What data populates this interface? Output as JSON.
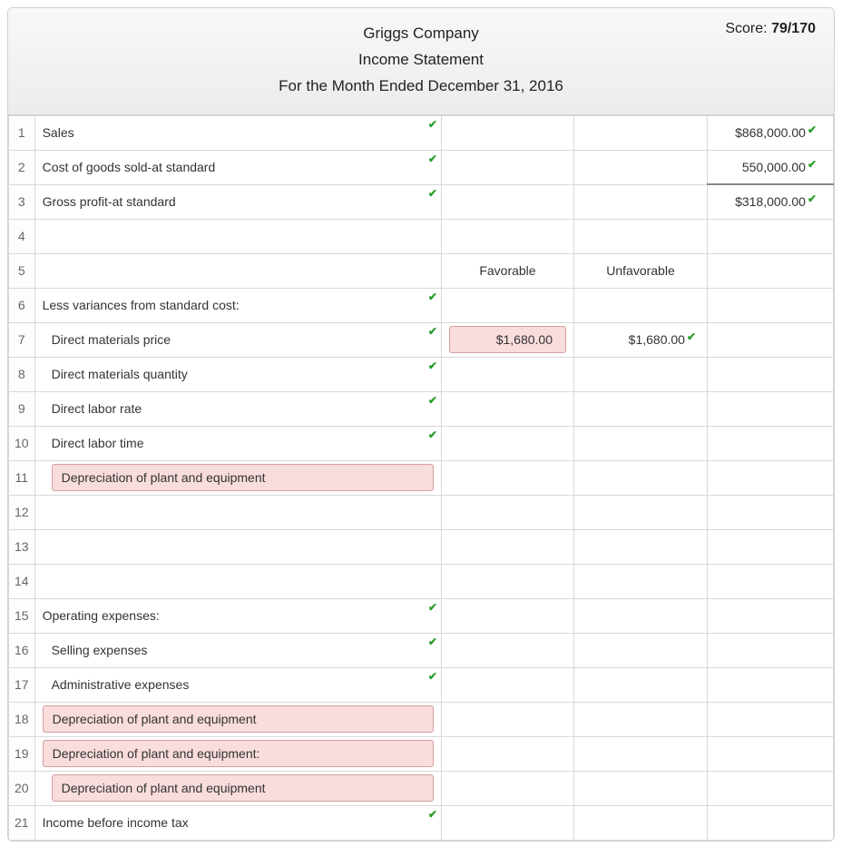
{
  "header": {
    "company": "Griggs Company",
    "statement": "Income Statement",
    "period": "For the Month Ended December 31, 2016",
    "score_label": "Score:",
    "score_value": "79/170"
  },
  "columns": {
    "favorable": "Favorable",
    "unfavorable": "Unfavorable"
  },
  "rows": [
    {
      "num": "1",
      "label": "Sales",
      "label_check": true,
      "amount": "$868,000.00",
      "amount_check": true
    },
    {
      "num": "2",
      "label": "Cost of goods sold-at standard",
      "label_check": true,
      "amount": "550,000.00",
      "amount_check": true
    },
    {
      "num": "3",
      "label": "Gross profit-at standard",
      "label_check": true,
      "amount": "$318,000.00",
      "amount_check": true,
      "border_top": true
    },
    {
      "num": "4"
    },
    {
      "num": "5",
      "header_row": true
    },
    {
      "num": "6",
      "label": "Less variances from standard cost:",
      "label_check": true
    },
    {
      "num": "7",
      "label": "Direct materials price",
      "indent": true,
      "label_check": true,
      "favorable": "$1,680.00",
      "favorable_error": true,
      "unfavorable": "$1,680.00",
      "unfavorable_check": true
    },
    {
      "num": "8",
      "label": "Direct materials quantity",
      "indent": true,
      "label_check": true
    },
    {
      "num": "9",
      "label": "Direct labor rate",
      "indent": true,
      "label_check": true
    },
    {
      "num": "10",
      "label": "Direct labor time",
      "indent": true,
      "label_check": true
    },
    {
      "num": "11",
      "label": "Depreciation of plant and equipment",
      "indent": true,
      "label_error": true
    },
    {
      "num": "12"
    },
    {
      "num": "13"
    },
    {
      "num": "14"
    },
    {
      "num": "15",
      "label": "Operating expenses:",
      "label_check": true
    },
    {
      "num": "16",
      "label": "Selling expenses",
      "indent": true,
      "label_check": true
    },
    {
      "num": "17",
      "label": "Administrative expenses",
      "indent": true,
      "label_check": true
    },
    {
      "num": "18",
      "label": "Depreciation of plant and equipment",
      "label_error": true
    },
    {
      "num": "19",
      "label": "Depreciation of plant and equipment:",
      "label_error": true
    },
    {
      "num": "20",
      "label": "Depreciation of plant and equipment",
      "indent": true,
      "label_error": true
    },
    {
      "num": "21",
      "label": "Income before income tax",
      "label_check": true
    }
  ],
  "colors": {
    "header_bg_top": "#f8f8f8",
    "header_bg_bottom": "#ececec",
    "border": "#d8d8d8",
    "check": "#2a9d2a",
    "error_bg": "#f9dcdc",
    "error_border": "#d4a0a0",
    "text": "#333333"
  }
}
